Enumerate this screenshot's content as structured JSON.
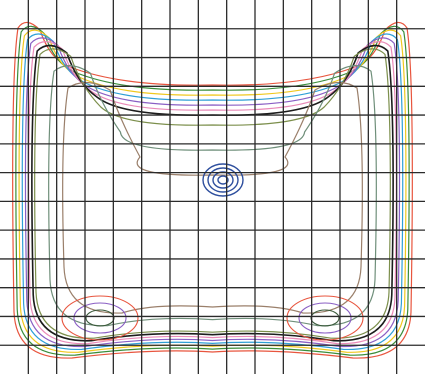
{
  "chart_data": {
    "type": "contour",
    "title": "",
    "xlabel": "",
    "ylabel": "",
    "grid": true,
    "grid_color": "#2b2b2b",
    "grid_columns": 15,
    "grid_rows": 13,
    "legend": "none",
    "series": [
      {
        "level": 1,
        "color": "#e8553e"
      },
      {
        "level": 2,
        "color": "#3a8d3a"
      },
      {
        "level": 3,
        "color": "#f0c81e"
      },
      {
        "level": 4,
        "color": "#2f9fd6"
      },
      {
        "level": 5,
        "color": "#8a5fc4"
      },
      {
        "level": 6,
        "color": "#e98ab8"
      },
      {
        "level": 7,
        "color": "#1c1c1c"
      },
      {
        "level": 8,
        "color": "#7c8f4c"
      },
      {
        "level": 9,
        "color": "#6f8f7a"
      },
      {
        "level": 10,
        "color": "#9a7f6a"
      }
    ],
    "center_feature": {
      "shape": "concentric-ellipses",
      "count": 4,
      "color": "#2e4f9e"
    },
    "background": "#ffffff"
  }
}
